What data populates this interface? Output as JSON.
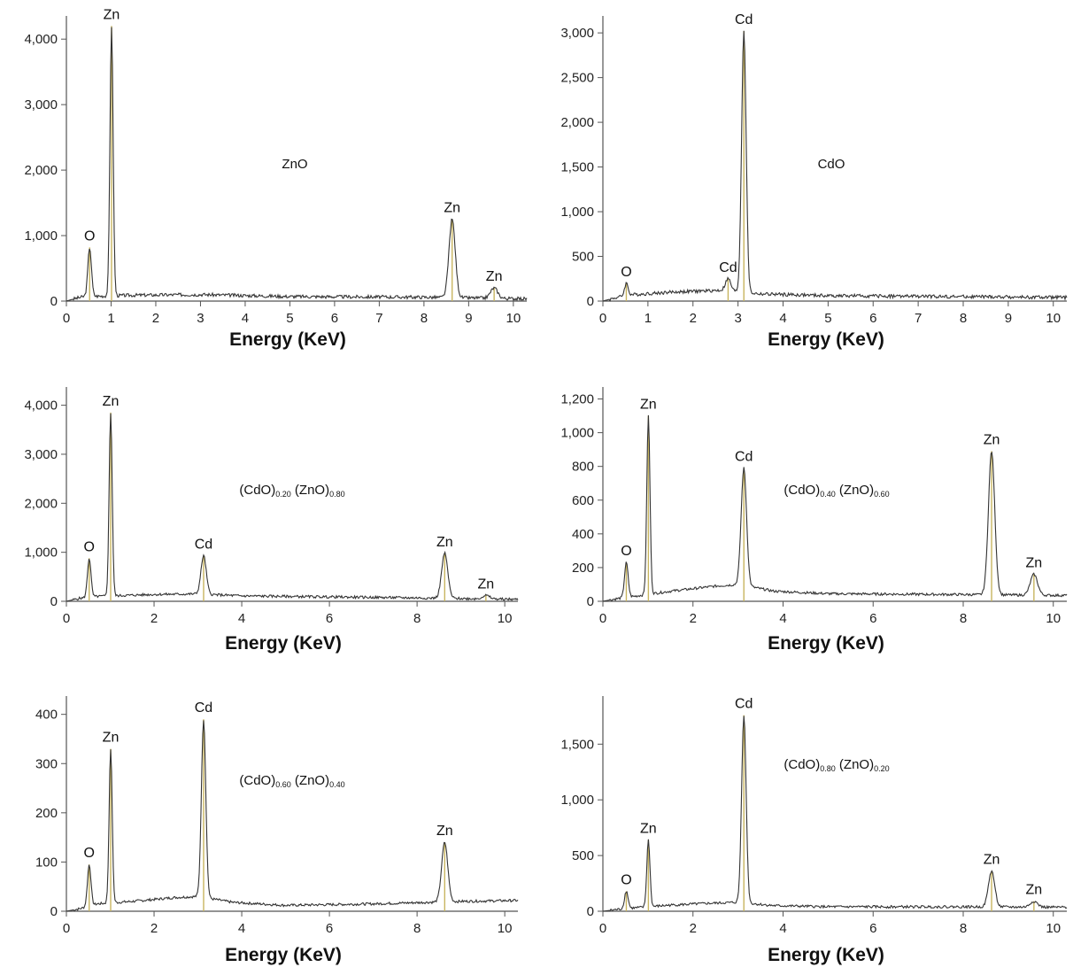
{
  "chart_data": [
    {
      "type": "line",
      "xlabel": "Energy (KeV)",
      "sample_label": {
        "parts": [
          {
            "t": "ZnO"
          }
        ]
      },
      "xlim": [
        0,
        10.3
      ],
      "xticks": [
        0,
        1,
        2,
        3,
        4,
        5,
        6,
        7,
        8,
        9,
        10
      ],
      "xtick_labels": [
        "0",
        "1",
        "2",
        "3",
        "4",
        "5",
        "6",
        "7",
        "8",
        "9",
        "10"
      ],
      "ylim": [
        0,
        4300
      ],
      "yticks": [
        0,
        1000,
        2000,
        3000,
        4000
      ],
      "ytick_labels": [
        "0",
        "1,000",
        "2,000",
        "3,000",
        "4,000"
      ],
      "baseline": [
        [
          0,
          0
        ],
        [
          0.2,
          40
        ],
        [
          0.4,
          70
        ],
        [
          1.5,
          90
        ],
        [
          3,
          100
        ],
        [
          5,
          70
        ],
        [
          8,
          60
        ],
        [
          10.3,
          35
        ]
      ],
      "peaks": [
        {
          "label": "O",
          "x": 0.52,
          "y": 820,
          "w": 0.04
        },
        {
          "label": "Zn",
          "x": 1.01,
          "y": 4200,
          "w": 0.035
        },
        {
          "label": "Zn",
          "x": 8.63,
          "y": 1250,
          "w": 0.07
        },
        {
          "label": "Zn",
          "x": 9.57,
          "y": 200,
          "w": 0.08
        }
      ]
    },
    {
      "type": "line",
      "xlabel": "Energy (KeV)",
      "sample_label": {
        "parts": [
          {
            "t": "CdO"
          }
        ]
      },
      "xlim": [
        0,
        10.3
      ],
      "xticks": [
        0,
        1,
        2,
        3,
        4,
        5,
        6,
        7,
        8,
        9,
        10
      ],
      "xtick_labels": [
        "0",
        "1",
        "2",
        "3",
        "4",
        "5",
        "6",
        "7",
        "8",
        "9",
        "10"
      ],
      "ylim": [
        0,
        3150
      ],
      "yticks": [
        0,
        500,
        1000,
        1500,
        2000,
        2500,
        3000
      ],
      "ytick_labels": [
        "0",
        "500",
        "1,000",
        "1,500",
        "2,000",
        "2,500",
        "3,000"
      ],
      "baseline": [
        [
          0,
          0
        ],
        [
          0.3,
          40
        ],
        [
          0.6,
          70
        ],
        [
          1.5,
          100
        ],
        [
          2.6,
          120
        ],
        [
          3.5,
          80
        ],
        [
          5,
          60
        ],
        [
          8,
          50
        ],
        [
          10.3,
          40
        ]
      ],
      "peaks": [
        {
          "label": "O",
          "x": 0.52,
          "y": 200,
          "w": 0.04
        },
        {
          "label": "Cd",
          "x": 2.78,
          "y": 250,
          "w": 0.06
        },
        {
          "label": "Cd",
          "x": 3.13,
          "y": 3020,
          "w": 0.05
        }
      ]
    },
    {
      "type": "line",
      "xlabel": "Energy (KeV)",
      "sample_label": {
        "parts": [
          {
            "t": "(CdO)"
          },
          {
            "t": "0.20",
            "sub": true
          },
          {
            "t": " (ZnO)"
          },
          {
            "t": "0.80",
            "sub": true
          }
        ]
      },
      "xlim": [
        0,
        10.3
      ],
      "xticks": [
        0,
        2,
        4,
        6,
        8,
        10
      ],
      "xtick_labels": [
        "0",
        "2",
        "4",
        "6",
        "8",
        "10"
      ],
      "ylim": [
        0,
        4300
      ],
      "yticks": [
        0,
        1000,
        2000,
        3000,
        4000
      ],
      "ytick_labels": [
        "0",
        "1,000",
        "2,000",
        "3,000",
        "4,000"
      ],
      "baseline": [
        [
          0,
          0
        ],
        [
          0.3,
          60
        ],
        [
          0.7,
          100
        ],
        [
          2,
          140
        ],
        [
          3,
          150
        ],
        [
          4,
          110
        ],
        [
          6,
          90
        ],
        [
          8,
          70
        ],
        [
          10.3,
          40
        ]
      ],
      "peaks": [
        {
          "label": "O",
          "x": 0.52,
          "y": 880,
          "w": 0.04
        },
        {
          "label": "Zn",
          "x": 1.01,
          "y": 3850,
          "w": 0.035
        },
        {
          "label": "Cd",
          "x": 3.13,
          "y": 930,
          "w": 0.06
        },
        {
          "label": "Zn",
          "x": 8.63,
          "y": 980,
          "w": 0.07
        },
        {
          "label": "Zn",
          "x": 9.57,
          "y": 120,
          "w": 0.08
        }
      ]
    },
    {
      "type": "line",
      "xlabel": "Energy (KeV)",
      "sample_label": {
        "parts": [
          {
            "t": "(CdO)"
          },
          {
            "t": "0.40",
            "sub": true
          },
          {
            "t": " (ZnO)"
          },
          {
            "t": "0.60",
            "sub": true
          }
        ]
      },
      "xlim": [
        0,
        10.3
      ],
      "xticks": [
        0,
        2,
        4,
        6,
        8,
        10
      ],
      "xtick_labels": [
        "0",
        "2",
        "4",
        "6",
        "8",
        "10"
      ],
      "ylim": [
        0,
        1250
      ],
      "yticks": [
        0,
        200,
        400,
        600,
        800,
        1000,
        1200
      ],
      "ytick_labels": [
        "0",
        "200",
        "400",
        "600",
        "800",
        "1,000",
        "1,200"
      ],
      "baseline": [
        [
          0,
          0
        ],
        [
          0.3,
          15
        ],
        [
          0.7,
          30
        ],
        [
          1.5,
          60
        ],
        [
          2.5,
          90
        ],
        [
          3.0,
          100
        ],
        [
          3.8,
          60
        ],
        [
          5,
          45
        ],
        [
          8,
          40
        ],
        [
          10.3,
          35
        ]
      ],
      "peaks": [
        {
          "label": "O",
          "x": 0.52,
          "y": 230,
          "w": 0.04
        },
        {
          "label": "Zn",
          "x": 1.01,
          "y": 1100,
          "w": 0.035
        },
        {
          "label": "Cd",
          "x": 3.13,
          "y": 790,
          "w": 0.06
        },
        {
          "label": "Zn",
          "x": 8.63,
          "y": 890,
          "w": 0.07
        },
        {
          "label": "Zn",
          "x": 9.57,
          "y": 160,
          "w": 0.08
        }
      ]
    },
    {
      "type": "line",
      "xlabel": "Energy (KeV)",
      "sample_label": {
        "parts": [
          {
            "t": "(CdO)"
          },
          {
            "t": "0.60",
            "sub": true
          },
          {
            "t": " (ZnO)"
          },
          {
            "t": "0.40",
            "sub": true
          }
        ]
      },
      "xlim": [
        0,
        10.3
      ],
      "xticks": [
        0,
        2,
        4,
        6,
        8,
        10
      ],
      "xtick_labels": [
        "0",
        "2",
        "4",
        "6",
        "8",
        "10"
      ],
      "ylim": [
        0,
        430
      ],
      "yticks": [
        0,
        100,
        200,
        300,
        400
      ],
      "ytick_labels": [
        "0",
        "100",
        "200",
        "300",
        "400"
      ],
      "baseline": [
        [
          0,
          0
        ],
        [
          0.3,
          5
        ],
        [
          0.7,
          15
        ],
        [
          1.5,
          20
        ],
        [
          2.5,
          28
        ],
        [
          3.0,
          30
        ],
        [
          3.8,
          18
        ],
        [
          5,
          12
        ],
        [
          7,
          15
        ],
        [
          9,
          20
        ],
        [
          10.3,
          22
        ]
      ],
      "peaks": [
        {
          "label": "O",
          "x": 0.52,
          "y": 95,
          "w": 0.04
        },
        {
          "label": "Zn",
          "x": 1.01,
          "y": 330,
          "w": 0.035
        },
        {
          "label": "Cd",
          "x": 3.13,
          "y": 390,
          "w": 0.05
        },
        {
          "label": "Zn",
          "x": 8.63,
          "y": 140,
          "w": 0.07
        }
      ]
    },
    {
      "type": "line",
      "xlabel": "Energy (KeV)",
      "sample_label": {
        "parts": [
          {
            "t": "(CdO)"
          },
          {
            "t": "0.80",
            "sub": true
          },
          {
            "t": " (ZnO)"
          },
          {
            "t": "0.20",
            "sub": true
          }
        ]
      },
      "xlim": [
        0,
        10.3
      ],
      "xticks": [
        0,
        2,
        4,
        6,
        8,
        10
      ],
      "xtick_labels": [
        "0",
        "2",
        "4",
        "6",
        "8",
        "10"
      ],
      "ylim": [
        0,
        1900
      ],
      "yticks": [
        0,
        500,
        1000,
        1500
      ],
      "ytick_labels": [
        "0",
        "500",
        "1,000",
        "1,500"
      ],
      "baseline": [
        [
          0,
          0
        ],
        [
          0.3,
          15
        ],
        [
          0.7,
          30
        ],
        [
          1.5,
          55
        ],
        [
          2.3,
          70
        ],
        [
          3.0,
          80
        ],
        [
          3.8,
          50
        ],
        [
          5,
          40
        ],
        [
          8,
          40
        ],
        [
          10.3,
          35
        ]
      ],
      "peaks": [
        {
          "label": "O",
          "x": 0.52,
          "y": 180,
          "w": 0.04
        },
        {
          "label": "Zn",
          "x": 1.01,
          "y": 640,
          "w": 0.035
        },
        {
          "label": "Cd",
          "x": 3.13,
          "y": 1760,
          "w": 0.05
        },
        {
          "label": "Zn",
          "x": 8.63,
          "y": 360,
          "w": 0.07
        },
        {
          "label": "Zn",
          "x": 9.57,
          "y": 90,
          "w": 0.08
        }
      ]
    }
  ]
}
